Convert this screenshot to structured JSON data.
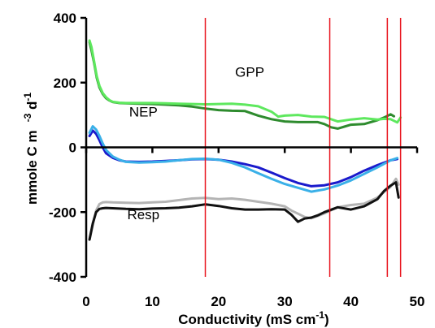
{
  "chart_data": {
    "type": "line",
    "xlabel": "Conductivity (mS cm",
    "xlabel_sup": "-1",
    "xlabel_close": ")",
    "ylabel": "mmole C m",
    "ylabel_sup1": "-3",
    "ylabel_mid": " d",
    "ylabel_sup2": "-1",
    "xlim": [
      0,
      50
    ],
    "ylim": [
      -400,
      400
    ],
    "x_ticks": [
      0,
      10,
      20,
      30,
      40,
      50
    ],
    "y_ticks": [
      -400,
      -200,
      0,
      200,
      400
    ],
    "x_tick_labels": [
      "0",
      "10",
      "20",
      "30",
      "40",
      "50"
    ],
    "y_tick_labels": [
      "-400",
      "-200",
      "0",
      "200",
      "400"
    ],
    "annotations": [
      {
        "text": "GPP",
        "x": 22.5,
        "y": 218
      },
      {
        "text": "NEP",
        "x": 6.5,
        "y": 95
      },
      {
        "text": "Resp",
        "x": 6.2,
        "y": -222
      }
    ],
    "vertical_lines": [
      18,
      36.8,
      45.5,
      47.5
    ],
    "vline_color": "#e8141e",
    "series": [
      {
        "color": "#2e8b2e",
        "width": 3,
        "x": [
          0.5,
          0.8,
          1.2,
          1.6,
          2.0,
          2.5,
          3.0,
          3.5,
          4.0,
          5,
          6,
          8,
          10,
          12,
          14,
          16,
          18,
          20,
          22,
          24,
          26,
          28,
          30,
          32,
          34,
          35,
          36,
          37,
          38,
          39,
          40,
          42,
          44,
          45,
          46,
          46.5
        ],
        "y": [
          325,
          300,
          260,
          215,
          185,
          165,
          152,
          145,
          140,
          137,
          136,
          135,
          134,
          132,
          130,
          126,
          120,
          115,
          113,
          112,
          98,
          87,
          80,
          78,
          78,
          78,
          72,
          62,
          58,
          64,
          70,
          72,
          84,
          92,
          102,
          96
        ]
      },
      {
        "color": "#5ee85e",
        "width": 3,
        "x": [
          0.5,
          0.8,
          1.2,
          1.6,
          2.0,
          2.5,
          3.0,
          3.5,
          4.0,
          5,
          6,
          8,
          10,
          12,
          14,
          16,
          18,
          20,
          22,
          24,
          26,
          28,
          29,
          30,
          32,
          34,
          36,
          38,
          40,
          42,
          44,
          45,
          46,
          47,
          47.5
        ],
        "y": [
          330,
          310,
          265,
          220,
          190,
          168,
          155,
          146,
          141,
          138,
          137,
          137,
          137,
          136,
          135,
          134,
          133,
          134,
          135,
          132,
          127,
          110,
          95,
          98,
          100,
          95,
          94,
          80,
          86,
          90,
          86,
          88,
          87,
          77,
          92
        ]
      },
      {
        "color": "#1a1acc",
        "width": 3,
        "x": [
          0.5,
          1.0,
          1.5,
          2.0,
          2.5,
          3.0,
          4,
          5,
          6,
          8,
          10,
          12,
          14,
          16,
          18,
          20,
          22,
          24,
          26,
          28,
          30,
          32,
          34,
          36,
          38,
          40,
          42,
          44,
          46,
          47
        ],
        "y": [
          35,
          52,
          42,
          22,
          0,
          -18,
          -32,
          -40,
          -44,
          -45,
          -44,
          -42,
          -40,
          -37,
          -36,
          -38,
          -44,
          -52,
          -62,
          -78,
          -95,
          -110,
          -120,
          -117,
          -108,
          -92,
          -72,
          -55,
          -40,
          -36
        ]
      },
      {
        "color": "#3ab0e8",
        "width": 3,
        "x": [
          0.5,
          1.0,
          1.5,
          2.0,
          2.5,
          3.0,
          4,
          5,
          6,
          8,
          10,
          12,
          14,
          16,
          18,
          20,
          22,
          24,
          26,
          28,
          30,
          32,
          34,
          36,
          38,
          40,
          42,
          44,
          46,
          47
        ],
        "y": [
          45,
          65,
          55,
          35,
          12,
          -8,
          -28,
          -38,
          -45,
          -47,
          -46,
          -44,
          -40,
          -36,
          -35,
          -38,
          -48,
          -62,
          -80,
          -97,
          -113,
          -125,
          -137,
          -130,
          -118,
          -102,
          -82,
          -62,
          -40,
          -33
        ]
      },
      {
        "color": "#b4b4b4",
        "width": 3,
        "x": [
          0.5,
          1.0,
          1.5,
          2.0,
          2.5,
          3.0,
          4,
          6,
          8,
          10,
          12,
          14,
          16,
          18,
          20,
          22,
          24,
          26,
          28,
          30,
          31,
          32,
          33,
          34,
          35,
          36,
          38,
          40,
          42,
          44,
          45,
          46,
          46.8,
          47.2
        ],
        "y": [
          -285,
          -240,
          -195,
          -175,
          -170,
          -169,
          -170,
          -171,
          -172,
          -170,
          -168,
          -163,
          -158,
          -156,
          -160,
          -158,
          -162,
          -168,
          -174,
          -182,
          -195,
          -205,
          -215,
          -219,
          -212,
          -204,
          -185,
          -178,
          -174,
          -155,
          -138,
          -122,
          -97,
          -115
        ]
      },
      {
        "color": "#111111",
        "width": 3,
        "x": [
          0.5,
          1.0,
          1.5,
          2.0,
          2.5,
          3.0,
          4,
          6,
          8,
          10,
          12,
          14,
          16,
          18,
          20,
          22,
          24,
          26,
          28,
          30,
          31,
          32,
          33,
          34,
          35,
          36,
          38,
          40,
          42,
          44,
          45,
          46,
          46.8,
          47.2
        ],
        "y": [
          -285,
          -235,
          -200,
          -190,
          -188,
          -187,
          -188,
          -190,
          -191,
          -189,
          -188,
          -186,
          -182,
          -176,
          -181,
          -188,
          -192,
          -192,
          -191,
          -192,
          -208,
          -230,
          -220,
          -217,
          -210,
          -200,
          -185,
          -192,
          -182,
          -160,
          -135,
          -118,
          -108,
          -155
        ]
      }
    ]
  }
}
